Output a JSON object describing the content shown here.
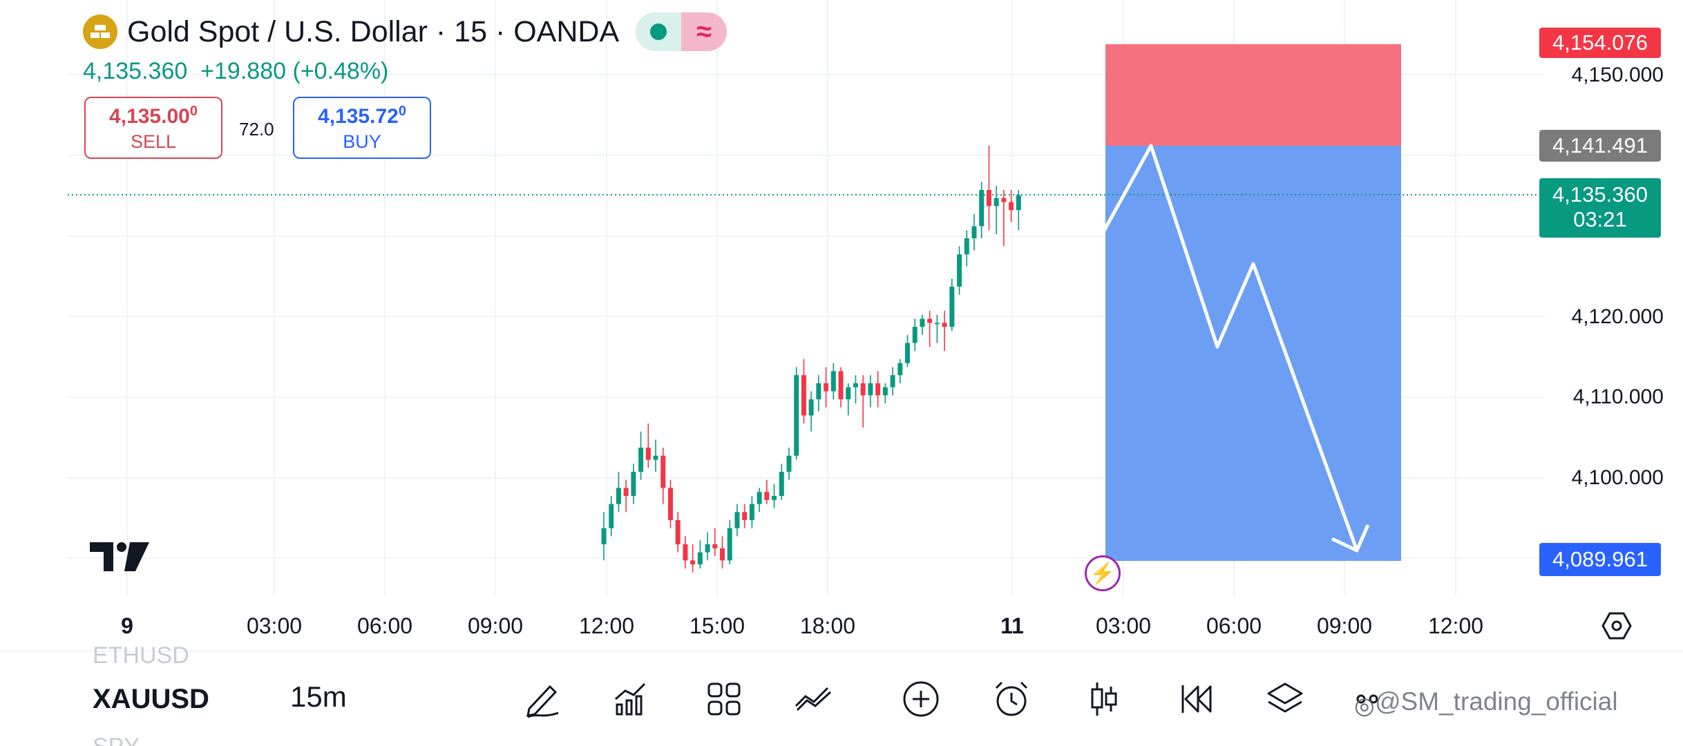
{
  "header": {
    "title": "Gold Spot / U.S. Dollar · 15 · OANDA",
    "last_price": "4,135.360",
    "change": "+19.880 (+0.48%)",
    "indicator_glyph": "≈"
  },
  "trade": {
    "sell_price": "4,135.00",
    "sell_price_sup": "0",
    "sell_label": "SELL",
    "spread": "72.0",
    "buy_price": "4,135.72",
    "buy_price_sup": "0",
    "buy_label": "BUY"
  },
  "price_axis": {
    "ticks": [
      "4,150.000",
      "4,120.000",
      "4,110.000",
      "4,100.000"
    ],
    "stop_label": "4,154.076",
    "entry_label": "4,141.491",
    "current_label": "4,135.360",
    "countdown": "03:21",
    "target_label": "4,089.961"
  },
  "time_axis": {
    "labels": [
      "9",
      "03:00",
      "06:00",
      "09:00",
      "12:00",
      "15:00",
      "18:00",
      "11",
      "03:00",
      "06:00",
      "09:00",
      "12:00"
    ],
    "bold_labels": [
      "9",
      "11"
    ]
  },
  "colors": {
    "up": "#089981",
    "down": "#f23645",
    "stop_zone": "#f47280",
    "target_zone": "#6c9ef4",
    "current_price": "#089981",
    "stop_badge": "#f23645",
    "entry_badge": "#7b7b7b",
    "target_badge": "#2962ff"
  },
  "watchlist": {
    "prev": "ETHUSD",
    "current": "XAUUSD",
    "next": "SPY"
  },
  "toolbar": {
    "timeframe": "15m",
    "tools": [
      "pencil-icon",
      "chart-type-icon",
      "grid-icon",
      "indicators-icon",
      "add-icon",
      "alarm-icon",
      "candles-icon",
      "replay-icon",
      "layers-icon",
      "more-icon"
    ]
  },
  "watermark": "@SM_trading_official",
  "chart_data": {
    "type": "candlestick",
    "symbol": "XAUUSD",
    "ylim": [
      4083,
      4158
    ],
    "position": {
      "side": "short",
      "stop": 4154.076,
      "entry": 4141.491,
      "target": 4089.961
    },
    "candles": [
      [
        4092.0,
        4096.0,
        4090.0,
        4094.0
      ],
      [
        4094.0,
        4098.0,
        4093.0,
        4097.0
      ],
      [
        4097.0,
        4101.0,
        4096.0,
        4099.0
      ],
      [
        4099.0,
        4100.0,
        4096.0,
        4098.0
      ],
      [
        4098.0,
        4102.0,
        4097.0,
        4101.0
      ],
      [
        4101.0,
        4106.0,
        4100.0,
        4104.0
      ],
      [
        4104.0,
        4107.0,
        4101.5,
        4102.5
      ],
      [
        4102.5,
        4105.0,
        4101.0,
        4103.0
      ],
      [
        4103.0,
        4104.0,
        4097.0,
        4099.0
      ],
      [
        4099.0,
        4100.0,
        4094.0,
        4095.0
      ],
      [
        4095.0,
        4096.0,
        4091.0,
        4092.0
      ],
      [
        4092.0,
        4093.0,
        4089.0,
        4090.0
      ],
      [
        4090.0,
        4092.0,
        4088.5,
        4089.5
      ],
      [
        4089.5,
        4092.5,
        4089.0,
        4091.0
      ],
      [
        4091.0,
        4093.5,
        4090.0,
        4092.0
      ],
      [
        4092.0,
        4094.0,
        4090.5,
        4091.5
      ],
      [
        4091.5,
        4093.0,
        4089.0,
        4090.0
      ],
      [
        4090.0,
        4095.0,
        4089.5,
        4094.0
      ],
      [
        4094.0,
        4097.0,
        4093.0,
        4096.0
      ],
      [
        4096.0,
        4097.0,
        4094.0,
        4095.0
      ],
      [
        4095.0,
        4098.0,
        4094.0,
        4097.0
      ],
      [
        4097.0,
        4099.0,
        4096.0,
        4098.5
      ],
      [
        4098.5,
        4100.0,
        4097.0,
        4097.5
      ],
      [
        4097.5,
        4099.5,
        4096.5,
        4098.0
      ],
      [
        4098.0,
        4102.0,
        4097.5,
        4101.0
      ],
      [
        4101.0,
        4104.0,
        4100.0,
        4103.0
      ],
      [
        4103.0,
        4114.0,
        4102.5,
        4113.0
      ],
      [
        4113.0,
        4115.0,
        4107.0,
        4108.0
      ],
      [
        4108.0,
        4111.0,
        4106.0,
        4110.0
      ],
      [
        4110.0,
        4113.0,
        4108.5,
        4112.0
      ],
      [
        4112.0,
        4114.0,
        4109.0,
        4111.0
      ],
      [
        4111.0,
        4114.5,
        4110.0,
        4113.5
      ],
      [
        4113.5,
        4114.0,
        4109.0,
        4110.0
      ],
      [
        4110.0,
        4112.0,
        4108.0,
        4111.5
      ],
      [
        4111.5,
        4113.0,
        4109.5,
        4112.0
      ],
      [
        4112.0,
        4113.0,
        4106.5,
        4110.5
      ],
      [
        4110.5,
        4113.0,
        4109.0,
        4112.0
      ],
      [
        4112.0,
        4113.5,
        4109.0,
        4110.5
      ],
      [
        4110.5,
        4112.0,
        4109.5,
        4111.5
      ],
      [
        4111.5,
        4114.0,
        4110.5,
        4113.0
      ],
      [
        4113.0,
        4115.0,
        4112.0,
        4114.5
      ],
      [
        4114.5,
        4118.0,
        4114.0,
        4117.0
      ],
      [
        4117.0,
        4120.0,
        4116.0,
        4119.0
      ],
      [
        4119.0,
        4120.5,
        4118.0,
        4120.0
      ],
      [
        4120.0,
        4121.0,
        4116.5,
        4119.5
      ],
      [
        4119.5,
        4120.5,
        4117.0,
        4119.5
      ],
      [
        4119.5,
        4121.0,
        4116.0,
        4119.0
      ],
      [
        4119.0,
        4125.0,
        4118.5,
        4124.0
      ],
      [
        4124.0,
        4129.0,
        4123.0,
        4128.0
      ],
      [
        4128.0,
        4131.0,
        4126.5,
        4130.0
      ],
      [
        4130.0,
        4133.0,
        4128.5,
        4131.5
      ],
      [
        4131.5,
        4137.0,
        4130.0,
        4136.0
      ],
      [
        4136.0,
        4141.5,
        4131.0,
        4134.0
      ],
      [
        4134.0,
        4136.5,
        4130.5,
        4135.0
      ],
      [
        4135.0,
        4136.0,
        4129.0,
        4134.5
      ],
      [
        4134.5,
        4136.0,
        4132.0,
        4133.5
      ],
      [
        4133.5,
        4136.0,
        4131.0,
        4135.36
      ]
    ]
  }
}
